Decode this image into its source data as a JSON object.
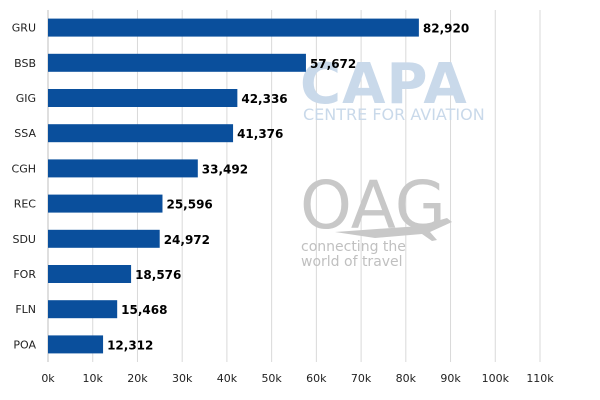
{
  "chart_data": {
    "type": "bar",
    "orientation": "horizontal",
    "title": "",
    "xlabel": "",
    "ylabel": "",
    "categories": [
      "GRU",
      "BSB",
      "GIG",
      "SSA",
      "CGH",
      "REC",
      "SDU",
      "FOR",
      "FLN",
      "POA"
    ],
    "values": [
      82920,
      57672,
      42336,
      41376,
      33492,
      25596,
      24972,
      18576,
      15468,
      12312
    ],
    "value_labels": [
      "82,920",
      "57,672",
      "42,336",
      "41,376",
      "33,492",
      "25,596",
      "24,972",
      "18,576",
      "15,468",
      "12,312"
    ],
    "xlim": [
      0,
      110000
    ],
    "x_ticks": [
      0,
      10000,
      20000,
      30000,
      40000,
      50000,
      60000,
      70000,
      80000,
      90000,
      100000,
      110000
    ],
    "x_tick_labels": [
      "0k",
      "10k",
      "20k",
      "30k",
      "40k",
      "50k",
      "60k",
      "70k",
      "80k",
      "90k",
      "100k",
      "110k"
    ],
    "grid": "vertical",
    "legend": "none",
    "bar_color": "#0a4f9c",
    "grid_color": "#d9d9d9"
  },
  "watermarks": {
    "capa_logo_text": "CAPA",
    "capa_tagline": "CENTRE FOR AVIATION",
    "oag_logo_text": "OAG",
    "oag_tagline_line1": "connecting the",
    "oag_tagline_line2": "world of travel"
  }
}
